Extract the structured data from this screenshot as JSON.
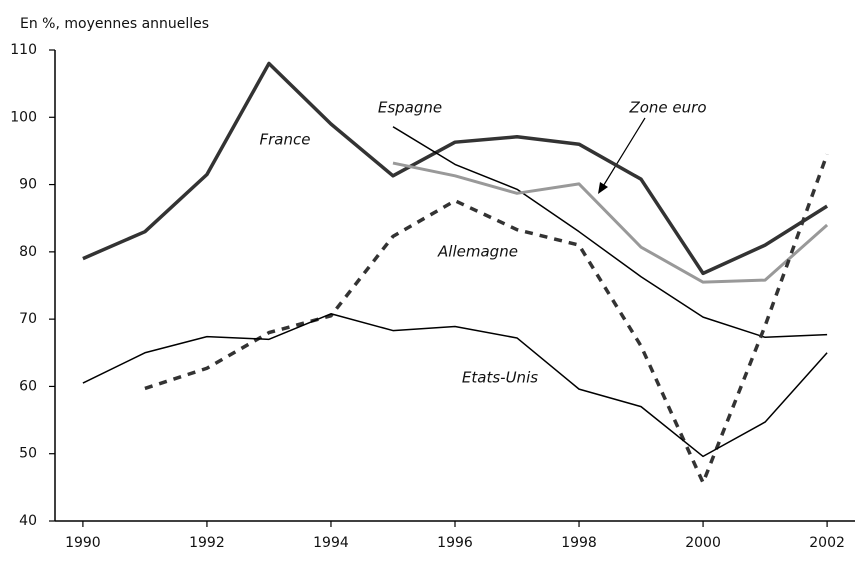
{
  "chart_data": {
    "type": "line",
    "y_label": "En %, moyennes annuelles",
    "x": [
      1990,
      1991,
      1992,
      1993,
      1994,
      1995,
      1996,
      1997,
      1998,
      1999,
      2000,
      2001,
      2002
    ],
    "xlim": [
      1989.55,
      2002.45
    ],
    "xticks": [
      1990,
      1992,
      1994,
      1996,
      1998,
      2000,
      2002
    ],
    "ylim": [
      40,
      110
    ],
    "yticks": [
      40,
      50,
      60,
      70,
      80,
      90,
      100,
      110
    ],
    "series": [
      {
        "name": "France",
        "color": "#333333",
        "width": 3.5,
        "values": [
          79,
          83,
          91.5,
          108,
          99,
          91.3,
          96.3,
          97.1,
          96,
          90.8,
          76.8,
          81,
          86.8
        ]
      },
      {
        "name": "Espagne",
        "color": "#000000",
        "width": 1.5,
        "values": [
          null,
          null,
          null,
          null,
          null,
          98.6,
          93,
          89.3,
          83,
          76.3,
          70.3,
          67.3,
          67.7
        ]
      },
      {
        "name": "Zone euro",
        "color": "#999999",
        "width": 3,
        "values": [
          null,
          null,
          null,
          null,
          null,
          93.2,
          91.3,
          88.7,
          90.1,
          80.7,
          75.5,
          75.8,
          84
        ]
      },
      {
        "name": "Allemagne",
        "color": "#333333",
        "width": 3.5,
        "dash": true,
        "values": [
          null,
          59.7,
          62.7,
          68,
          70.5,
          82.3,
          87.6,
          83.3,
          81,
          66,
          45.7,
          69,
          94.5
        ]
      },
      {
        "name": "Etats-Unis",
        "color": "#000000",
        "width": 1.5,
        "values": [
          60.5,
          65,
          67.4,
          67,
          70.8,
          68.3,
          68.9,
          67.2,
          59.6,
          57,
          49.6,
          54.7,
          65
        ]
      }
    ]
  }
}
